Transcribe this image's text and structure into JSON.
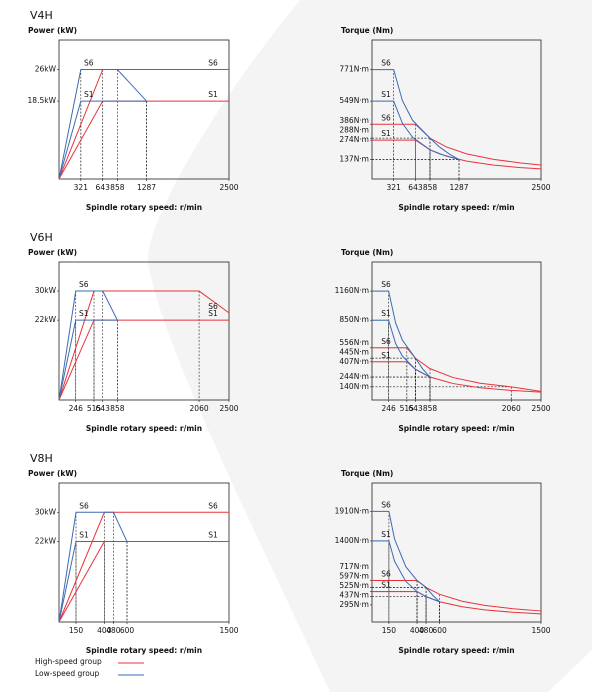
{
  "chart_data": [
    {
      "type": "line",
      "title": "V4H",
      "y_label": "Power (kW)",
      "x_label": "Spindle rotary speed: r/min",
      "xlim": [
        0,
        2500
      ],
      "ylim": [
        0,
        33
      ],
      "xticks": [
        321,
        643,
        858,
        1287,
        2500
      ],
      "yticks": [
        {
          "value": 18.5,
          "label": "18.5kW"
        },
        {
          "value": 26,
          "label": "26kW"
        }
      ],
      "series": [
        {
          "name": "S6",
          "color": "#e8333c",
          "x": [
            0,
            643,
            2500
          ],
          "values": [
            0,
            26,
            26
          ]
        },
        {
          "name": "S1",
          "color": "#e8333c",
          "x": [
            0,
            643,
            2500
          ],
          "values": [
            0,
            18.5,
            18.5
          ]
        },
        {
          "name": "S6",
          "color": "#3c6cb4",
          "x": [
            0,
            321,
            858,
            1287
          ],
          "values": [
            0,
            26,
            26,
            18.5
          ]
        },
        {
          "name": "S1",
          "color": "#3c6cb4",
          "x": [
            0,
            321,
            1287
          ],
          "values": [
            0,
            18.5,
            18.5
          ]
        }
      ]
    },
    {
      "type": "line",
      "y_label": "Torque (Nm)",
      "x_label": "Spindle rotary speed: r/min",
      "xlim": [
        0,
        2500
      ],
      "ylim": [
        0,
        980
      ],
      "xticks": [
        321,
        643,
        858,
        1287,
        2500
      ],
      "yticks": [
        {
          "value": 137,
          "label": "137N·m"
        },
        {
          "value": 274,
          "label": "274N·m"
        },
        {
          "value": 288,
          "label": "288N·m"
        },
        {
          "value": 386,
          "label": "386N·m"
        },
        {
          "value": 549,
          "label": "549N·m"
        },
        {
          "value": 771,
          "label": "771N·m"
        }
      ],
      "series": [
        {
          "name": "S6",
          "color": "#e8333c",
          "x": [
            0,
            643,
            858,
            1100,
            1400,
            1800,
            2200,
            2500
          ],
          "values": [
            386,
            386,
            288,
            226,
            177,
            138,
            113,
            99
          ]
        },
        {
          "name": "S1",
          "color": "#e8333c",
          "x": [
            0,
            643,
            858,
            1100,
            1400,
            1800,
            2200,
            2500
          ],
          "values": [
            274,
            274,
            206,
            161,
            126,
            98,
            80,
            71
          ]
        },
        {
          "name": "S6",
          "color": "#3c6cb4",
          "x": [
            0,
            321,
            450,
            600,
            858,
            1000,
            1150,
            1287
          ],
          "values": [
            771,
            771,
            552,
            414,
            288,
            225,
            174,
            137
          ]
        },
        {
          "name": "S1",
          "color": "#3c6cb4",
          "x": [
            0,
            321,
            450,
            600,
            858,
            1000,
            1287
          ],
          "values": [
            549,
            549,
            393,
            294,
            206,
            177,
            137
          ]
        }
      ]
    },
    {
      "type": "line",
      "title": "V6H",
      "y_label": "Power (kW)",
      "x_label": "Spindle rotary speed: r/min",
      "xlim": [
        0,
        2500
      ],
      "ylim": [
        0,
        38
      ],
      "xticks": [
        246,
        515,
        643,
        858,
        2060,
        2500
      ],
      "yticks": [
        {
          "value": 22,
          "label": "22kW"
        },
        {
          "value": 30,
          "label": "30kW"
        }
      ],
      "series": [
        {
          "name": "S6",
          "color": "#e8333c",
          "x": [
            0,
            515,
            2060,
            2500
          ],
          "values": [
            0,
            30,
            30,
            24
          ]
        },
        {
          "name": "S1",
          "color": "#e8333c",
          "x": [
            0,
            515,
            2500
          ],
          "values": [
            0,
            22,
            22
          ]
        },
        {
          "name": "S6",
          "color": "#3c6cb4",
          "x": [
            0,
            246,
            643,
            858
          ],
          "values": [
            0,
            30,
            30,
            22
          ]
        },
        {
          "name": "S1",
          "color": "#3c6cb4",
          "x": [
            0,
            246,
            858
          ],
          "values": [
            0,
            22,
            22
          ]
        }
      ]
    },
    {
      "type": "line",
      "y_label": "Torque (Nm)",
      "x_label": "Spindle rotary speed: r/min",
      "xlim": [
        0,
        2500
      ],
      "ylim": [
        0,
        1470
      ],
      "xticks": [
        246,
        515,
        643,
        858,
        2060,
        2500
      ],
      "yticks": [
        {
          "value": 140,
          "label": "140N·m"
        },
        {
          "value": 244,
          "label": "244N·m"
        },
        {
          "value": 407,
          "label": "407N·m"
        },
        {
          "value": 445,
          "label": "445N·m"
        },
        {
          "value": 556,
          "label": "556N·m"
        },
        {
          "value": 850,
          "label": "850N·m"
        },
        {
          "value": 1160,
          "label": "1160N·m"
        }
      ],
      "series": [
        {
          "name": "S6",
          "color": "#e8333c",
          "x": [
            0,
            515,
            643,
            858,
            1200,
            1600,
            2060,
            2500
          ],
          "values": [
            556,
            556,
            445,
            334,
            239,
            179,
            140,
            92
          ]
        },
        {
          "name": "S1",
          "color": "#e8333c",
          "x": [
            0,
            515,
            643,
            858,
            1200,
            1600,
            2060,
            2500
          ],
          "values": [
            407,
            407,
            327,
            245,
            175,
            131,
            102,
            84
          ]
        },
        {
          "name": "S6",
          "color": "#3c6cb4",
          "x": [
            0,
            246,
            350,
            450,
            643,
            750,
            858
          ],
          "values": [
            1160,
            1160,
            819,
            637,
            445,
            331,
            244
          ]
        },
        {
          "name": "S1",
          "color": "#3c6cb4",
          "x": [
            0,
            246,
            350,
            450,
            643,
            858
          ],
          "values": [
            850,
            850,
            600,
            467,
            327,
            244
          ]
        }
      ]
    },
    {
      "type": "line",
      "title": "V8H",
      "y_label": "Power (kW)",
      "x_label": "Spindle rotary speed: r/min",
      "xlim": [
        0,
        1500
      ],
      "ylim": [
        0,
        38
      ],
      "xticks": [
        150,
        400,
        480,
        600,
        1500
      ],
      "yticks": [
        {
          "value": 22,
          "label": "22kW"
        },
        {
          "value": 30,
          "label": "30kW"
        }
      ],
      "series": [
        {
          "name": "S6",
          "color": "#e8333c",
          "x": [
            0,
            400,
            1500
          ],
          "values": [
            0,
            30,
            30
          ]
        },
        {
          "name": "S1",
          "color": "#e8333c",
          "x": [
            0,
            400,
            1500
          ],
          "values": [
            0,
            22,
            22
          ]
        },
        {
          "name": "S6",
          "color": "#3c6cb4",
          "x": [
            0,
            150,
            480,
            600
          ],
          "values": [
            0,
            30,
            30,
            22
          ]
        },
        {
          "name": "S1",
          "color": "#3c6cb4",
          "x": [
            0,
            150,
            600
          ],
          "values": [
            0,
            22,
            22
          ]
        }
      ]
    },
    {
      "type": "line",
      "y_label": "Torque (Nm)",
      "x_label": "Spindle rotary speed: r/min",
      "xlim": [
        0,
        1500
      ],
      "ylim": [
        0,
        2400
      ],
      "xticks": [
        150,
        400,
        480,
        600,
        1500
      ],
      "yticks": [
        {
          "value": 295,
          "label": "295N·m"
        },
        {
          "value": 437,
          "label": "437N·m"
        },
        {
          "value": 525,
          "label": "525N·m"
        },
        {
          "value": 597,
          "label": "597N·m"
        },
        {
          "value": 717,
          "label": "717N·m"
        },
        {
          "value": 1400,
          "label": "1400N·m"
        },
        {
          "value": 1910,
          "label": "1910N·m"
        }
      ],
      "series": [
        {
          "name": "S6",
          "color": "#e8333c",
          "x": [
            0,
            400,
            480,
            600,
            800,
            1000,
            1250,
            1500
          ],
          "values": [
            717,
            717,
            597,
            478,
            358,
            287,
            229,
            191
          ]
        },
        {
          "name": "S1",
          "color": "#e8333c",
          "x": [
            0,
            400,
            480,
            600,
            800,
            1000,
            1250,
            1500
          ],
          "values": [
            525,
            525,
            437,
            350,
            263,
            210,
            168,
            140
          ]
        },
        {
          "name": "S6",
          "color": "#3c6cb4",
          "x": [
            0,
            150,
            200,
            300,
            400,
            480,
            540,
            600
          ],
          "values": [
            1910,
            1910,
            1433,
            955,
            717,
            597,
            460,
            350
          ]
        },
        {
          "name": "S1",
          "color": "#3c6cb4",
          "x": [
            0,
            150,
            200,
            300,
            400,
            480,
            600
          ],
          "values": [
            1400,
            1400,
            1051,
            700,
            525,
            438,
            350
          ]
        }
      ]
    }
  ],
  "legend": [
    {
      "label": "High-speed group",
      "color": "#e8333c"
    },
    {
      "label": "Low-speed group",
      "color": "#3c6cb4"
    }
  ]
}
